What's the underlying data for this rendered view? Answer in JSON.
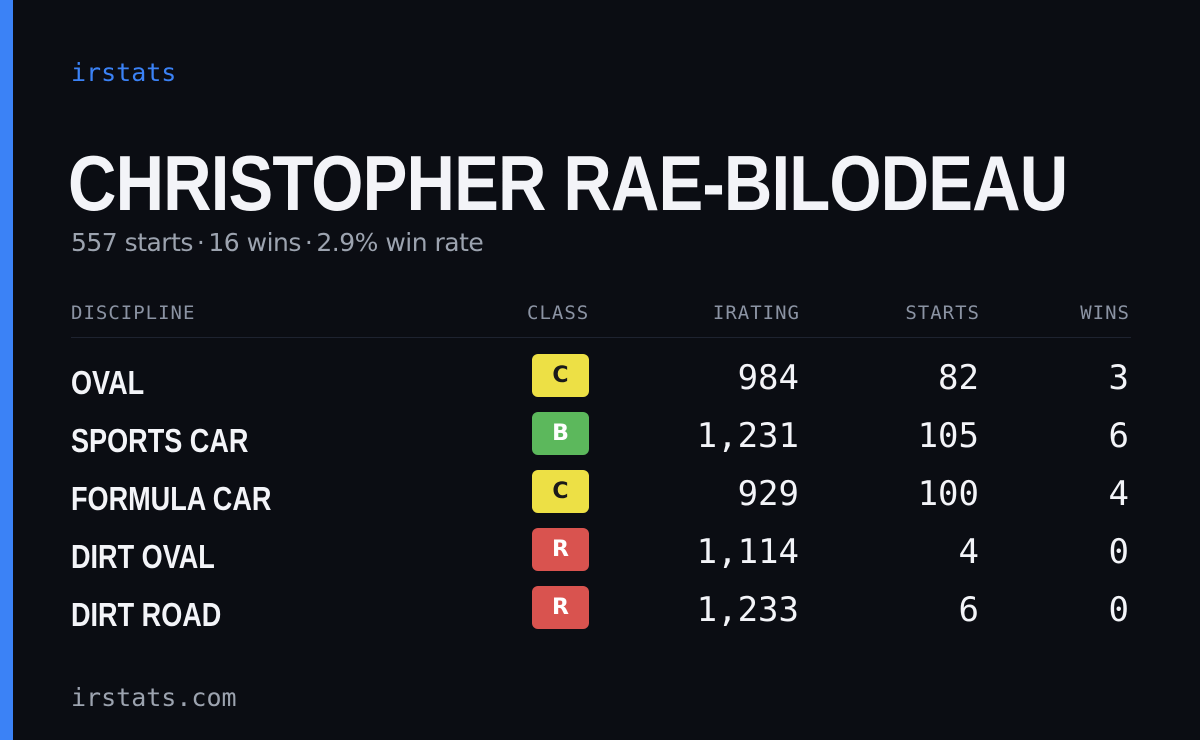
{
  "brand": "irstats",
  "driver": {
    "name": "CHRISTOPHER RAE-BILODEAU"
  },
  "summary": {
    "starts": "557 starts",
    "wins": "16 wins",
    "win_rate": "2.9% win rate",
    "separator": "·"
  },
  "table": {
    "headers": {
      "discipline": "DISCIPLINE",
      "class": "CLASS",
      "irating": "IRATING",
      "starts": "STARTS",
      "wins": "WINS"
    },
    "rows": [
      {
        "discipline": "OVAL",
        "class": "C",
        "irating": "984",
        "starts": "82",
        "wins": "3"
      },
      {
        "discipline": "SPORTS CAR",
        "class": "B",
        "irating": "1,231",
        "starts": "105",
        "wins": "6"
      },
      {
        "discipline": "FORMULA CAR",
        "class": "C",
        "irating": "929",
        "starts": "100",
        "wins": "4"
      },
      {
        "discipline": "DIRT OVAL",
        "class": "R",
        "irating": "1,114",
        "starts": "4",
        "wins": "0"
      },
      {
        "discipline": "DIRT ROAD",
        "class": "R",
        "irating": "1,233",
        "starts": "6",
        "wins": "0"
      }
    ]
  },
  "class_colors": {
    "C": "#ede045",
    "B": "#5cb85c",
    "R": "#d9534f"
  },
  "accent_color": "#3b82f6",
  "footer": "irstats.com"
}
